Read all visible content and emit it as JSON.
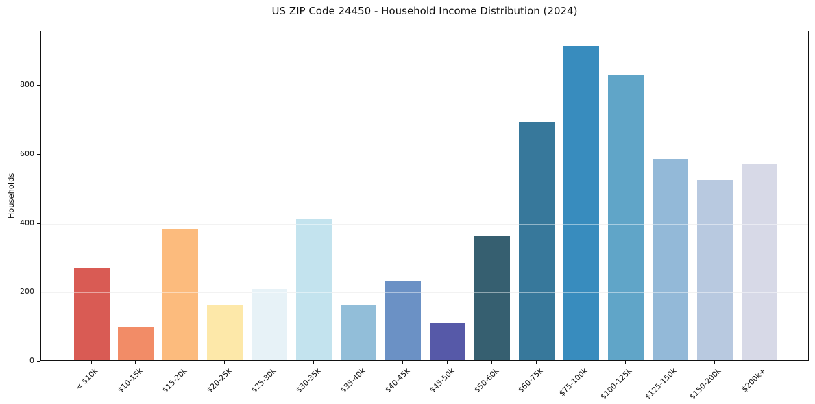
{
  "figure": {
    "background": "#ffffff",
    "spine_color": "#111111",
    "grid_color": "#e7e7e7"
  },
  "chart_data": {
    "type": "bar",
    "title": "US ZIP Code 24450 - Household Income Distribution (2024)",
    "xlabel": "",
    "ylabel": "Households",
    "categories": [
      "< $10k",
      "$10-15k",
      "$15-20k",
      "$20-25k",
      "$25-30k",
      "$30-35k",
      "$35-40k",
      "$40-45k",
      "$45-50k",
      "$50-60k",
      "$60-75k",
      "$75-100k",
      "$100-125k",
      "$125-150k",
      "$150-200k",
      "$200k+"
    ],
    "values": [
      268,
      98,
      382,
      161,
      206,
      409,
      159,
      229,
      109,
      361,
      691,
      912,
      827,
      584,
      522,
      569
    ],
    "bar_colors": [
      "#d95b54",
      "#f28c67",
      "#fcbb7d",
      "#fde8a9",
      "#e7f2f7",
      "#c3e3ee",
      "#92bed9",
      "#6b91c5",
      "#5659a8",
      "#365f70",
      "#37789b",
      "#388cbe",
      "#60a5c8",
      "#93b9d8",
      "#b8c9e0",
      "#d7d9e7"
    ],
    "yticks": [
      0,
      200,
      400,
      600,
      800
    ],
    "ylim": [
      0,
      958
    ],
    "grid": "horizontal",
    "legend": "none",
    "x_tick_rotation": 45
  }
}
